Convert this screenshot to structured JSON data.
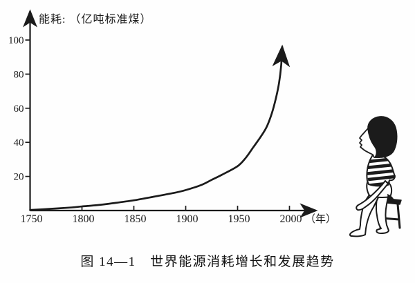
{
  "page": {
    "background_color": "#fefefe",
    "ink_color": "#1b1b1b"
  },
  "figure": {
    "caption": "图 14—1　世界能源消耗增长和发展趋势",
    "art": "child-figure-watching-curve"
  },
  "chart_data": {
    "type": "line",
    "title": "图 14—1　世界能源消耗增长和发展趋势",
    "ylabel": "能耗: （亿吨标准煤）",
    "xlabel": "年",
    "x_unit_label": "（年）",
    "xlim": [
      1750,
      2012
    ],
    "ylim": [
      0,
      108
    ],
    "xticks": [
      1750,
      1800,
      1850,
      1900,
      1950,
      2000
    ],
    "yticks": [
      20,
      40,
      60,
      80,
      100
    ],
    "grid": false,
    "legend_position": "none",
    "curve_ends_with_arrow": true,
    "series": [
      {
        "name": "世界能源消耗",
        "x": [
          1750,
          1770,
          1790,
          1800,
          1815,
          1830,
          1850,
          1870,
          1890,
          1900,
          1915,
          1925,
          1935,
          1950,
          1958,
          1965,
          1972,
          1978,
          1983,
          1987,
          1990,
          1992,
          1993
        ],
        "y": [
          0.3,
          1.0,
          1.8,
          2.4,
          3.2,
          4.3,
          6.0,
          8.2,
          10.5,
          12.0,
          15.0,
          18.0,
          21.0,
          26.0,
          31.0,
          37.0,
          43.0,
          49.0,
          57.0,
          66.0,
          75.0,
          85.0,
          96.0
        ]
      }
    ]
  }
}
